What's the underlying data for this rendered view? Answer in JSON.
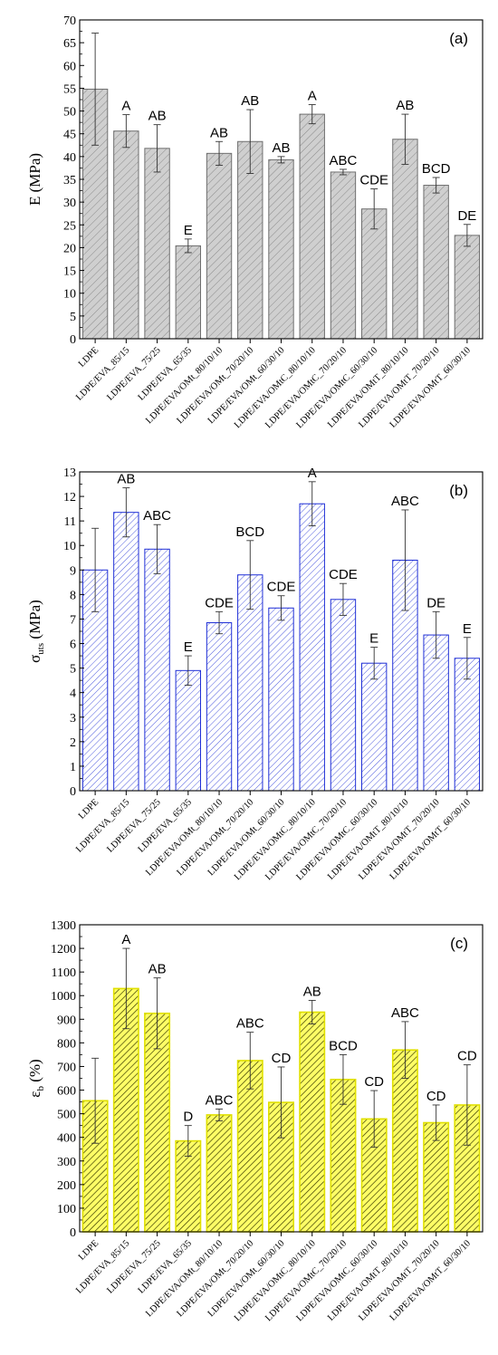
{
  "chart_data": [
    {
      "type": "bar",
      "panel_label": "(a)",
      "ylabel": {
        "main": "E",
        "sub": "",
        "unit": "(MPa)"
      },
      "ylim": [
        0,
        70
      ],
      "yticks": [
        0,
        5,
        10,
        15,
        20,
        25,
        30,
        35,
        40,
        45,
        50,
        55,
        60,
        65,
        70
      ],
      "bar_fill": "#cfcfcf",
      "bar_stroke": "#6e6e6e",
      "hatch_color": "#8a8a8a",
      "categories": [
        "LDPE",
        "LDPE/EVA_85/15",
        "LDPE/EVA_75/25",
        "LDPE/EVA_65/35",
        "LDPE/EVA/OMt_80/10/10",
        "LDPE/EVA/OMt_70/20/10",
        "LDPE/EVA/OMt_60/30/10",
        "LDPE/EVA/OMtC_80/10/10",
        "LDPE/EVA/OMtC_70/20/10",
        "LDPE/EVA/OMtC_60/30/10",
        "LDPE/EVA/OMtT_80/10/10",
        "LDPE/EVA/OMtT_70/20/10",
        "LDPE/EVA/OMtT_60/30/10"
      ],
      "values": [
        54.8,
        45.6,
        41.8,
        20.4,
        40.7,
        43.3,
        39.3,
        49.3,
        36.6,
        28.5,
        43.8,
        33.7,
        22.7
      ],
      "errors": [
        12.3,
        3.6,
        5.2,
        1.5,
        2.6,
        7.0,
        0.7,
        2.1,
        0.6,
        4.4,
        5.5,
        1.7,
        2.4
      ],
      "significance": [
        "",
        "A",
        "AB",
        "E",
        "AB",
        "AB",
        "AB",
        "A",
        "ABC",
        "CDE",
        "AB",
        "BCD",
        "DE"
      ]
    },
    {
      "type": "bar",
      "panel_label": "(b)",
      "ylabel": {
        "main": "σ",
        "sub": "uts",
        "unit": "(MPa)"
      },
      "ylim": [
        0,
        13
      ],
      "yticks": [
        0,
        1,
        2,
        3,
        4,
        5,
        6,
        7,
        8,
        9,
        10,
        11,
        12,
        13
      ],
      "bar_fill": "#ffffff",
      "bar_stroke": "#1f2fd6",
      "hatch_color": "#1f2fd6",
      "categories": [
        "LDPE",
        "LDPE/EVA_85/15",
        "LDPE/EVA_75/25",
        "LDPE/EVA_65/35",
        "LDPE/EVA/OMt_80/10/10",
        "LDPE/EVA/OMt_70/20/10",
        "LDPE/EVA/OMt_60/30/10",
        "LDPE/EVA/OMtC_80/10/10",
        "LDPE/EVA/OMtC_70/20/10",
        "LDPE/EVA/OMtC_60/30/10",
        "LDPE/EVA/OMtT_80/10/10",
        "LDPE/EVA/OMtT_70/20/10",
        "LDPE/EVA/OMtT_60/30/10"
      ],
      "values": [
        9.0,
        11.35,
        9.85,
        4.9,
        6.85,
        8.8,
        7.45,
        11.7,
        7.8,
        5.2,
        9.4,
        6.35,
        5.4
      ],
      "errors": [
        1.7,
        1.0,
        1.0,
        0.6,
        0.45,
        1.4,
        0.5,
        0.9,
        0.65,
        0.65,
        2.05,
        0.95,
        0.85
      ],
      "significance": [
        "",
        "AB",
        "ABC",
        "E",
        "CDE",
        "BCD",
        "CDE",
        "A",
        "CDE",
        "E",
        "ABC",
        "DE",
        "E"
      ]
    },
    {
      "type": "bar",
      "panel_label": "(c)",
      "ylabel": {
        "main": "ε",
        "sub": "b",
        "unit": "(%)"
      },
      "ylim": [
        0,
        1300
      ],
      "yticks": [
        0,
        100,
        200,
        300,
        400,
        500,
        600,
        700,
        800,
        900,
        1000,
        1100,
        1200,
        1300
      ],
      "bar_fill": "#ffff66",
      "bar_stroke": "#e0e000",
      "hatch_color": "#3a3a00",
      "categories": [
        "LDPE",
        "LDPE/EVA_85/15",
        "LDPE/EVA_75/25",
        "LDPE/EVA_65/35",
        "LDPE/EVA/OMt_80/10/10",
        "LDPE/EVA/OMt_70/20/10",
        "LDPE/EVA/OMt_60/30/10",
        "LDPE/EVA/OMtC_80/10/10",
        "LDPE/EVA/OMtC_70/20/10",
        "LDPE/EVA/OMtC_60/30/10",
        "LDPE/EVA/OMtT_80/10/10",
        "LDPE/EVA/OMtT_70/20/10",
        "LDPE/EVA/OMtT_60/30/10"
      ],
      "values": [
        555,
        1030,
        925,
        385,
        495,
        725,
        548,
        930,
        645,
        478,
        770,
        462,
        537
      ],
      "errors": [
        180,
        170,
        150,
        65,
        25,
        120,
        150,
        50,
        105,
        120,
        120,
        75,
        170
      ],
      "significance": [
        "",
        "A",
        "AB",
        "D",
        "ABC",
        "ABC",
        "CD",
        "AB",
        "BCD",
        "CD",
        "ABC",
        "CD",
        "CD"
      ]
    }
  ]
}
